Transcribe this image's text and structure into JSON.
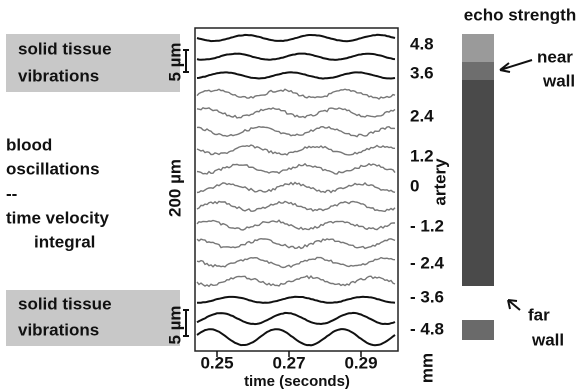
{
  "left_labels": {
    "top_box": [
      "solid tissue",
      "vibrations"
    ],
    "blood": [
      "blood",
      "oscillations",
      "--",
      "time velocity",
      "integral"
    ],
    "bottom_box": [
      "solid tissue",
      "vibrations"
    ]
  },
  "scale_bars": [
    "5 µm",
    "200 µm",
    "5 µm"
  ],
  "x_axis": {
    "ticks": [
      "0.25",
      "0.27",
      "0.29"
    ],
    "label": "time (seconds)"
  },
  "depth_axis": {
    "ticks": [
      "4.8",
      "3.6",
      "2.4",
      "1.2",
      "0",
      "- 1.2",
      "- 2.4",
      "- 3.6",
      "- 4.8"
    ],
    "unit": "mm",
    "label": "artery"
  },
  "echo": {
    "title": "echo strength",
    "near": [
      "near",
      "wall"
    ],
    "far": [
      "far",
      "wall"
    ]
  }
}
